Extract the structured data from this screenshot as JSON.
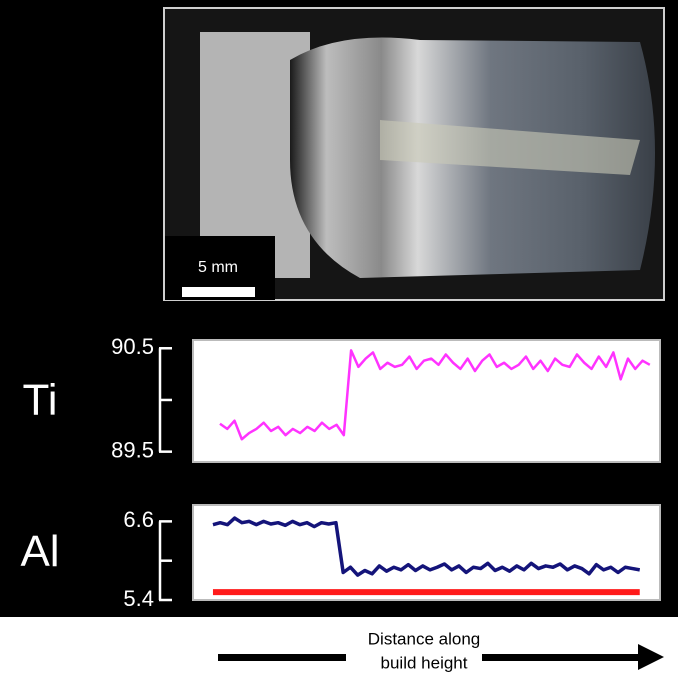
{
  "scale_bar": {
    "label": "5 mm"
  },
  "x_axis_label": [
    "Distance along",
    "build height"
  ],
  "chart_data": [
    {
      "type": "line",
      "ylabel": "Ti",
      "x": [
        0,
        1,
        2,
        3,
        4,
        5,
        6,
        7,
        8,
        9,
        10,
        11,
        12,
        13,
        14,
        15,
        16,
        17,
        18,
        19,
        20,
        21,
        22,
        23,
        24,
        25,
        26,
        27,
        28,
        29,
        30,
        31,
        32,
        33,
        34,
        35,
        36,
        37,
        38,
        39,
        40,
        41,
        42,
        43,
        44,
        45,
        46,
        47,
        48,
        49,
        50,
        51,
        52,
        53,
        54,
        55,
        56,
        57,
        58,
        59
      ],
      "xlim": [
        -3.7,
        60.4
      ],
      "ylim": [
        89.4,
        90.58
      ],
      "yticks": [
        89.5,
        {
          "value": 90,
          "label": null
        },
        90.5
      ],
      "series": [
        {
          "color": "#ff33ff",
          "values": [
            89.77,
            89.72,
            89.8,
            89.62,
            89.68,
            89.72,
            89.78,
            89.7,
            89.74,
            89.66,
            89.72,
            89.68,
            89.74,
            89.7,
            89.78,
            89.72,
            89.76,
            89.66,
            90.48,
            90.32,
            90.4,
            90.46,
            90.3,
            90.36,
            90.32,
            90.34,
            90.42,
            90.3,
            90.38,
            90.4,
            90.34,
            90.44,
            90.36,
            90.3,
            90.4,
            90.28,
            90.38,
            90.44,
            90.32,
            90.36,
            90.3,
            90.34,
            90.42,
            90.3,
            90.38,
            90.28,
            90.4,
            90.34,
            90.32,
            90.44,
            90.36,
            90.3,
            90.42,
            90.32,
            90.46,
            90.2,
            90.4,
            90.3,
            90.38,
            90.34
          ]
        }
      ]
    },
    {
      "type": "line",
      "ylabel": "Al",
      "x": [
        0,
        1,
        2,
        3,
        4,
        5,
        6,
        7,
        8,
        9,
        10,
        11,
        12,
        13,
        14,
        15,
        16,
        17,
        18,
        19,
        20,
        21,
        22,
        23,
        24,
        25,
        26,
        27,
        28,
        29,
        30,
        31,
        32,
        33,
        34,
        35,
        36,
        37,
        38,
        39,
        40,
        41,
        42,
        43,
        44,
        45,
        46,
        47,
        48,
        49,
        50,
        51,
        52,
        53,
        54,
        55,
        56,
        57,
        58,
        59
      ],
      "xlim": [
        -2.76,
        61.8
      ],
      "ylim": [
        5.4,
        6.85
      ],
      "yticks": [
        5.4,
        {
          "value": 6,
          "label": null
        },
        6.6
      ],
      "series": [
        {
          "color": "#14147a",
          "values": [
            6.55,
            6.58,
            6.55,
            6.65,
            6.58,
            6.6,
            6.55,
            6.6,
            6.56,
            6.58,
            6.54,
            6.6,
            6.55,
            6.58,
            6.52,
            6.58,
            6.56,
            6.58,
            5.82,
            5.9,
            5.78,
            5.85,
            5.8,
            5.92,
            5.84,
            5.9,
            5.86,
            5.94,
            5.85,
            5.92,
            5.86,
            5.9,
            5.95,
            5.86,
            5.92,
            5.82,
            5.9,
            5.88,
            5.96,
            5.85,
            5.9,
            5.84,
            5.92,
            5.86,
            5.96,
            5.88,
            5.92,
            5.9,
            5.95,
            5.86,
            5.92,
            5.88,
            5.8,
            5.94,
            5.86,
            5.9,
            5.82,
            5.9,
            5.88,
            5.86
          ]
        },
        {
          "color": "#ff1a1a",
          "x": [
            0,
            59
          ],
          "values": [
            5.52,
            5.52
          ]
        }
      ]
    }
  ]
}
